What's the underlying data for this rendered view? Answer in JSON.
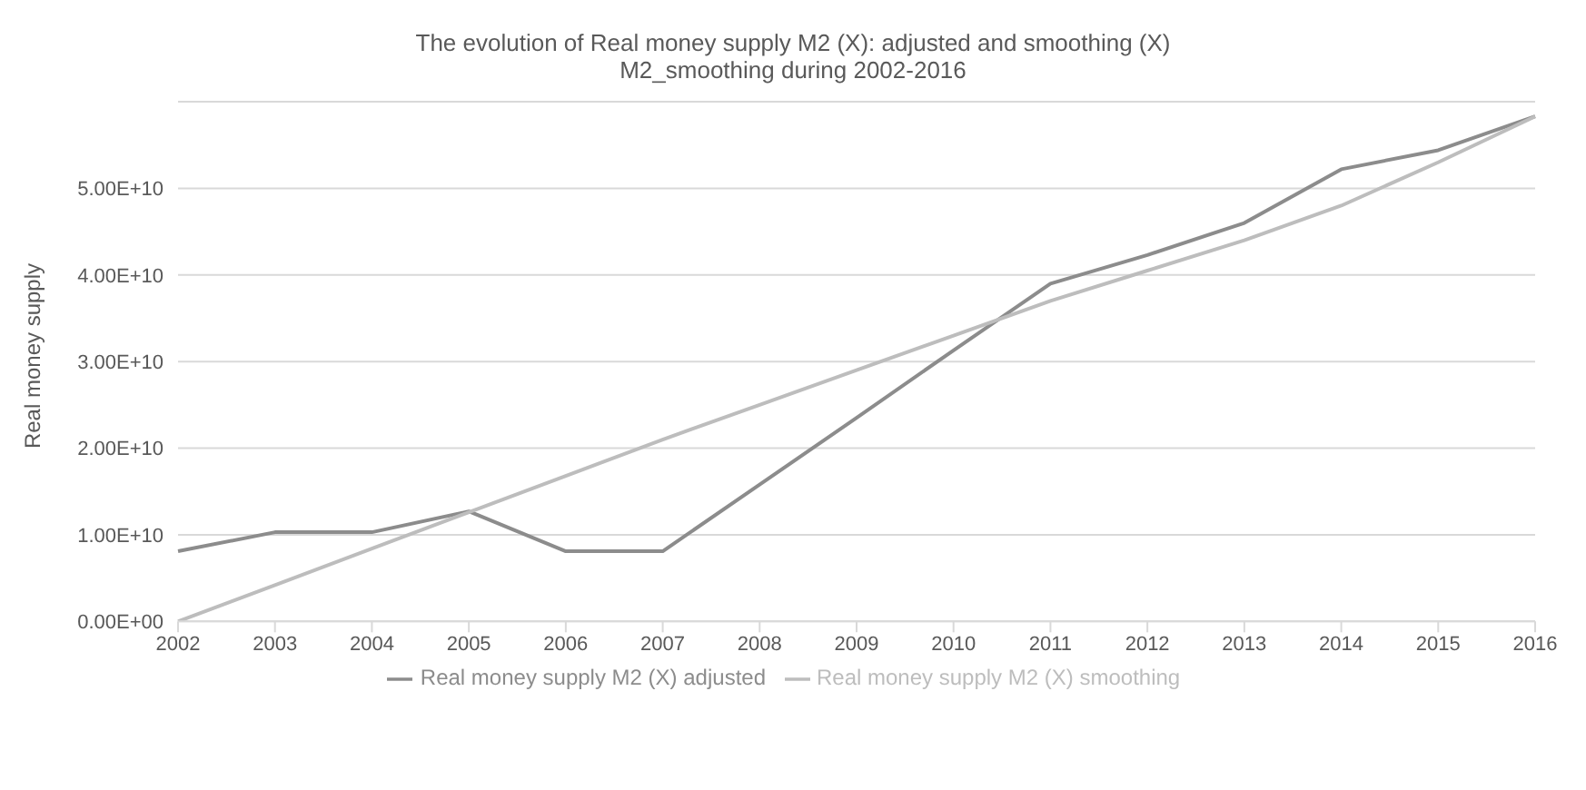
{
  "chart_data": {
    "type": "line",
    "title": "The evolution of Real money supply M2 (X): adjusted and smoothing (X)",
    "subtitle": "M2_smoothing during 2002-2016",
    "ylabel": "Real money supply",
    "categories": [
      "2002",
      "2003",
      "2004",
      "2005",
      "2006",
      "2007",
      "2008",
      "2009",
      "2010",
      "2011",
      "2012",
      "2013",
      "2014",
      "2015",
      "2016"
    ],
    "series": [
      {
        "name": "Real money supply M2 (X) adjusted",
        "color": "#8c8c8c",
        "values": [
          8100000000.0,
          10300000000.0,
          10300000000.0,
          12700000000.0,
          8100000000.0,
          8100000000.0,
          15800000000.0,
          23500000000.0,
          31300000000.0,
          39000000000.0,
          42300000000.0,
          46000000000.0,
          52200000000.0,
          54400000000.0,
          58300000000.0
        ]
      },
      {
        "name": "Real money supply M2 (X) smoothing",
        "color": "#bdbdbd",
        "values": [
          0,
          4200000000.0,
          8400000000.0,
          12600000000.0,
          16800000000.0,
          21000000000.0,
          25000000000.0,
          29000000000.0,
          33000000000.0,
          37000000000.0,
          40500000000.0,
          44000000000.0,
          48000000000.0,
          53000000000.0,
          58300000000.0
        ]
      }
    ],
    "ylim": [
      0,
      60000000000.0
    ],
    "yticks": [
      {
        "value": 0,
        "label": "0.00E+00"
      },
      {
        "value": 10000000000.0,
        "label": "1.00E+10"
      },
      {
        "value": 20000000000.0,
        "label": "2.00E+10"
      },
      {
        "value": 30000000000.0,
        "label": "3.00E+10"
      },
      {
        "value": 40000000000.0,
        "label": "4.00E+10"
      },
      {
        "value": 50000000000.0,
        "label": "5.00E+10"
      }
    ],
    "grid": "y",
    "legend": "bottom",
    "marker": "none",
    "line_style": "solid"
  }
}
